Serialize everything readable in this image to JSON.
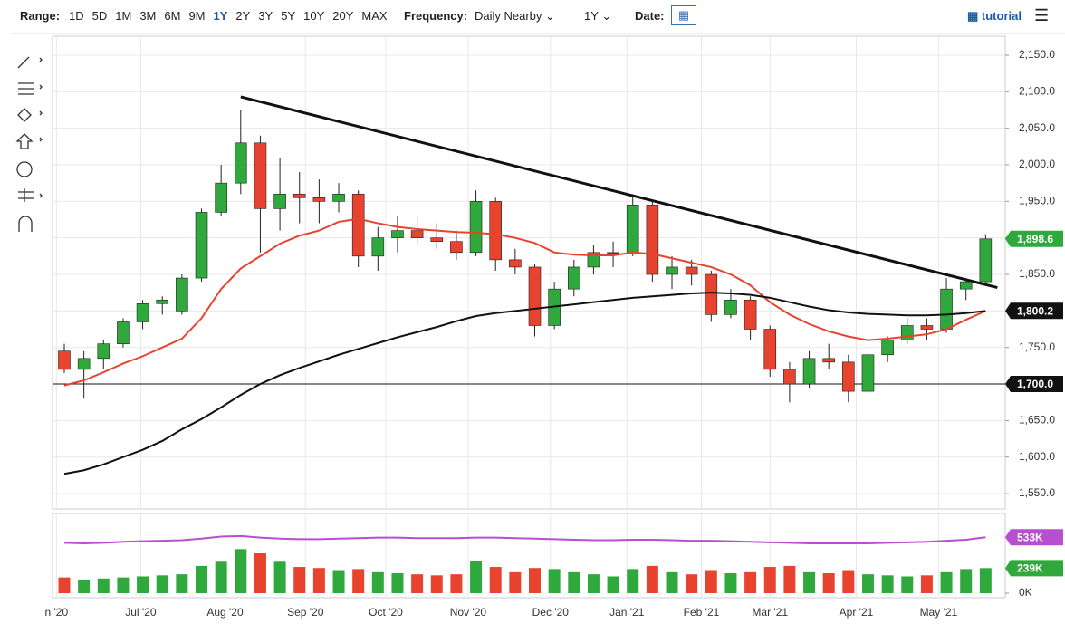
{
  "toolbar": {
    "range_label": "Range:",
    "ranges": [
      "1D",
      "5D",
      "1M",
      "3M",
      "6M",
      "9M",
      "1Y",
      "2Y",
      "3Y",
      "5Y",
      "10Y",
      "20Y",
      "MAX"
    ],
    "frequency_label": "Frequency:",
    "frequency": "Daily Nearby",
    "period": "1Y",
    "date_label": "Date:",
    "tutorial": "tutorial"
  },
  "chart_data": {
    "type": "candlestick",
    "x": [
      2,
      7,
      12,
      17,
      22,
      27,
      32,
      37,
      42,
      47,
      52,
      57,
      62,
      67,
      72,
      77,
      82,
      87,
      92,
      97,
      102,
      107,
      112,
      117,
      122,
      127,
      132,
      137,
      142,
      147,
      152,
      157,
      162,
      167,
      172,
      177,
      182,
      187,
      192,
      197,
      202,
      207,
      212,
      217,
      222,
      227,
      232,
      237
    ],
    "open": [
      1745,
      1720,
      1735,
      1755,
      1785,
      1810,
      1800,
      1845,
      1935,
      1975,
      2030,
      1940,
      1960,
      1955,
      1950,
      1960,
      1875,
      1900,
      1910,
      1900,
      1895,
      1880,
      1950,
      1870,
      1860,
      1780,
      1830,
      1860,
      1880,
      1880,
      1945,
      1850,
      1860,
      1850,
      1795,
      1815,
      1775,
      1720,
      1700,
      1735,
      1730,
      1690,
      1740,
      1760,
      1780,
      1775,
      1830,
      1840
    ],
    "high": [
      1755,
      1745,
      1760,
      1790,
      1815,
      1820,
      1850,
      1940,
      2000,
      2075,
      2040,
      2010,
      1990,
      1980,
      1975,
      1965,
      1915,
      1930,
      1930,
      1920,
      1910,
      1965,
      1955,
      1885,
      1865,
      1840,
      1870,
      1890,
      1895,
      1960,
      1950,
      1875,
      1870,
      1855,
      1830,
      1820,
      1780,
      1730,
      1745,
      1755,
      1740,
      1745,
      1765,
      1790,
      1790,
      1845,
      1845,
      1905
    ],
    "low": [
      1715,
      1680,
      1720,
      1750,
      1775,
      1795,
      1795,
      1840,
      1930,
      1960,
      1880,
      1910,
      1920,
      1920,
      1935,
      1860,
      1855,
      1880,
      1890,
      1885,
      1870,
      1875,
      1855,
      1850,
      1765,
      1775,
      1820,
      1850,
      1860,
      1875,
      1840,
      1830,
      1835,
      1785,
      1790,
      1760,
      1710,
      1675,
      1695,
      1720,
      1675,
      1685,
      1730,
      1755,
      1760,
      1770,
      1815,
      1835
    ],
    "close": [
      1720,
      1735,
      1755,
      1785,
      1810,
      1815,
      1845,
      1935,
      1975,
      2030,
      1940,
      1960,
      1955,
      1950,
      1960,
      1875,
      1900,
      1910,
      1900,
      1895,
      1880,
      1950,
      1870,
      1860,
      1780,
      1830,
      1860,
      1880,
      1880,
      1945,
      1850,
      1860,
      1850,
      1795,
      1815,
      1775,
      1720,
      1700,
      1735,
      1730,
      1690,
      1740,
      1760,
      1780,
      1775,
      1830,
      1840,
      1898.6
    ],
    "ma50": [
      1698,
      1705,
      1716,
      1728,
      1738,
      1750,
      1762,
      1790,
      1830,
      1858,
      1875,
      1892,
      1903,
      1910,
      1922,
      1926,
      1920,
      1915,
      1912,
      1910,
      1908,
      1907,
      1905,
      1900,
      1893,
      1880,
      1877,
      1876,
      1876,
      1880,
      1878,
      1872,
      1866,
      1860,
      1850,
      1835,
      1812,
      1795,
      1782,
      1772,
      1765,
      1760,
      1762,
      1765,
      1768,
      1775,
      1788,
      1800
    ],
    "ma200": [
      1577,
      1582,
      1590,
      1600,
      1610,
      1622,
      1638,
      1652,
      1668,
      1685,
      1700,
      1712,
      1722,
      1731,
      1740,
      1748,
      1756,
      1764,
      1771,
      1778,
      1786,
      1793,
      1797,
      1800,
      1803,
      1806,
      1809,
      1812,
      1815,
      1818,
      1820,
      1822,
      1824,
      1825,
      1824,
      1822,
      1818,
      1812,
      1806,
      1801,
      1798,
      1796,
      1795,
      1794,
      1794,
      1795,
      1797,
      1800
    ],
    "volume": [
      150000,
      130000,
      140000,
      150000,
      160000,
      170000,
      180000,
      260000,
      300000,
      420000,
      380000,
      300000,
      250000,
      240000,
      220000,
      230000,
      200000,
      190000,
      180000,
      170000,
      180000,
      310000,
      250000,
      200000,
      240000,
      230000,
      200000,
      180000,
      160000,
      230000,
      260000,
      200000,
      180000,
      220000,
      190000,
      200000,
      250000,
      260000,
      200000,
      190000,
      220000,
      180000,
      170000,
      160000,
      170000,
      200000,
      230000,
      239000
    ],
    "volume_avg": [
      480000,
      475000,
      480000,
      490000,
      495000,
      500000,
      505000,
      520000,
      540000,
      545000,
      530000,
      520000,
      515000,
      515000,
      520000,
      525000,
      530000,
      530000,
      525000,
      525000,
      525000,
      530000,
      530000,
      525000,
      520000,
      515000,
      510000,
      505000,
      505000,
      510000,
      510000,
      505000,
      500000,
      500000,
      495000,
      490000,
      485000,
      480000,
      475000,
      475000,
      475000,
      475000,
      480000,
      485000,
      490000,
      500000,
      510000,
      533000
    ],
    "up_color": "#2fa83c",
    "down_color": "#e8432e",
    "ma50_color": "#e8432e",
    "ma200_color": "#111111",
    "volume_avg_color": "#b84fd1",
    "trendline": {
      "x": [
        47,
        240
      ],
      "y": [
        2093,
        1832
      ]
    },
    "hline": 1700,
    "xlim": [
      -1,
      242
    ],
    "ylim": [
      1529,
      2176
    ],
    "volume_ylim": [
      0,
      760000
    ],
    "xticks": [
      {
        "value": 0,
        "label": "n '20"
      },
      {
        "value": 21.5,
        "label": "Jul '20"
      },
      {
        "value": 43,
        "label": "Aug '20"
      },
      {
        "value": 63.5,
        "label": "Sep '20"
      },
      {
        "value": 84,
        "label": "Oct '20"
      },
      {
        "value": 105,
        "label": "Nov '20"
      },
      {
        "value": 126,
        "label": "Dec '20"
      },
      {
        "value": 145.5,
        "label": "Jan '21"
      },
      {
        "value": 164.5,
        "label": "Feb '21"
      },
      {
        "value": 182,
        "label": "Mar '21"
      },
      {
        "value": 204,
        "label": "Apr '21"
      },
      {
        "value": 225,
        "label": "May '21"
      }
    ],
    "yticks": [
      {
        "value": 1550,
        "label": "1,550.0"
      },
      {
        "value": 1600,
        "label": "1,600.0"
      },
      {
        "value": 1650,
        "label": "1,650.0"
      },
      {
        "value": 1700,
        "label": "1,700.0"
      },
      {
        "value": 1750,
        "label": "1,750.0"
      },
      {
        "value": 1800,
        "label": "1,800.0"
      },
      {
        "value": 1850,
        "label": "1,850.0"
      },
      {
        "value": 1900,
        "label": "1,900.0"
      },
      {
        "value": 1950,
        "label": "1,950.0"
      },
      {
        "value": 2000,
        "label": "2,000.0"
      },
      {
        "value": 2050,
        "label": "2,050.0"
      },
      {
        "value": 2100,
        "label": "2,100.0"
      },
      {
        "value": 2150,
        "label": "2,150.0"
      }
    ],
    "price_tags": [
      {
        "value": 1898.6,
        "label": "1,898.6",
        "color": "#2fa83c"
      },
      {
        "value": 1800.2,
        "label": "1,800.2",
        "color": "#111111"
      },
      {
        "value": 1700,
        "label": "1,700.0",
        "color": "#111111"
      }
    ],
    "volume_ticks": [
      {
        "value": 0,
        "label": "0K"
      }
    ],
    "volume_tags": [
      {
        "value": 533000,
        "label": "533K",
        "color": "#b84fd1"
      },
      {
        "value": 239000,
        "label": "239K",
        "color": "#2fa83c"
      }
    ],
    "grid": true
  }
}
